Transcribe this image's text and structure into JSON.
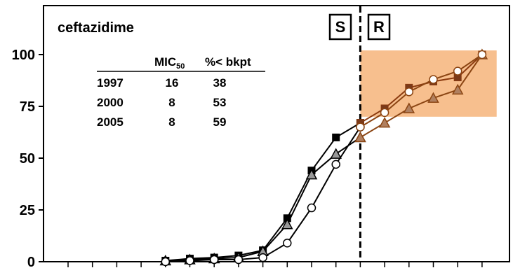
{
  "chart_data": {
    "type": "line",
    "title": "ceftazidime",
    "xlabel": "",
    "ylabel": "",
    "ylim": [
      0,
      118
    ],
    "yticks": [
      "0",
      "25",
      "50",
      "75",
      "100"
    ],
    "x_tick_count": 18,
    "breakpoint_x": 12,
    "region_labels": {
      "susceptible": "S",
      "resistant": "R"
    },
    "highlight_region": {
      "x_from": 12,
      "x_to": 17.6,
      "y_from": 70,
      "y_to": 102
    },
    "series": [
      {
        "marker": "square-filled",
        "color": "#000000",
        "points": [
          [
            4,
            0.5
          ],
          [
            5,
            1.5
          ],
          [
            6,
            2
          ],
          [
            7,
            3
          ],
          [
            8,
            5.5
          ],
          [
            9,
            21
          ],
          [
            10,
            44
          ],
          [
            11,
            60
          ],
          [
            12,
            67
          ]
        ]
      },
      {
        "marker": "triangle-gray",
        "color": "#000000",
        "points": [
          [
            4,
            0.5
          ],
          [
            5,
            1
          ],
          [
            6,
            1.5
          ],
          [
            7,
            2
          ],
          [
            8,
            5
          ],
          [
            9,
            18
          ],
          [
            10,
            42
          ],
          [
            11,
            52
          ],
          [
            12,
            60
          ]
        ]
      },
      {
        "marker": "circle-open",
        "color": "#000000",
        "points": [
          [
            4,
            0
          ],
          [
            5,
            0.5
          ],
          [
            6,
            1
          ],
          [
            7,
            1
          ],
          [
            8,
            2
          ],
          [
            9,
            9
          ],
          [
            10,
            26
          ],
          [
            11,
            47
          ],
          [
            12,
            65
          ]
        ]
      },
      {
        "marker": "square-filled",
        "color": "#8B3A0F",
        "fill": "#7A3A1A",
        "points": [
          [
            12,
            67
          ],
          [
            13,
            74
          ],
          [
            14,
            84
          ],
          [
            15,
            87
          ],
          [
            16,
            89
          ],
          [
            17,
            100
          ]
        ]
      },
      {
        "marker": "triangle-gray",
        "color": "#8B4513",
        "fill": "#B08060",
        "points": [
          [
            12,
            60
          ],
          [
            13,
            67
          ],
          [
            14,
            74
          ],
          [
            15,
            79
          ],
          [
            16,
            83
          ],
          [
            17,
            100
          ]
        ]
      },
      {
        "marker": "circle-open",
        "color": "#8B4513",
        "points": [
          [
            12,
            65
          ],
          [
            13,
            72
          ],
          [
            14,
            82
          ],
          [
            15,
            88
          ],
          [
            16,
            92
          ],
          [
            17,
            100
          ]
        ]
      }
    ],
    "table": {
      "headers": [
        "MIC",
        "50",
        "%< bkpt"
      ],
      "rows": [
        [
          "1997",
          "16",
          "38"
        ],
        [
          "2000",
          "8",
          "53"
        ],
        [
          "2005",
          "8",
          "59"
        ]
      ]
    }
  }
}
